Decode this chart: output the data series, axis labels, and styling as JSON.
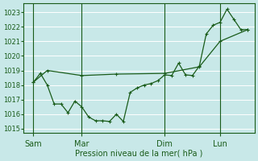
{
  "xlabel": "Pression niveau de la mer( hPa )",
  "bg_color": "#c8e8e8",
  "line_color": "#1a5c1a",
  "ylim_min": 1014.7,
  "ylim_max": 1023.6,
  "xlim_min": -0.2,
  "xlim_max": 16.5,
  "yticks": [
    1015,
    1016,
    1017,
    1018,
    1019,
    1020,
    1021,
    1022,
    1023
  ],
  "day_labels": [
    "Sam",
    "Mar",
    "Dim",
    "Lun"
  ],
  "day_positions": [
    0.5,
    4.0,
    10.0,
    14.0
  ],
  "vline_positions": [
    0.5,
    4.0,
    10.0,
    14.0
  ],
  "series1_x": [
    0.5,
    1.0,
    1.5,
    2.0,
    2.5,
    3.0,
    3.5,
    4.0,
    4.5,
    5.0,
    5.5,
    6.0,
    6.5,
    7.0,
    7.5,
    8.0,
    8.5,
    9.0,
    9.5,
    10.0,
    10.5,
    11.0,
    11.5,
    12.0,
    12.5,
    13.0,
    13.5,
    14.0,
    14.5,
    15.0,
    15.5,
    16.0
  ],
  "series1_y": [
    1018.2,
    1018.8,
    1018.0,
    1016.7,
    1016.7,
    1016.1,
    1016.9,
    1016.5,
    1015.8,
    1015.55,
    1015.55,
    1015.5,
    1016.0,
    1015.5,
    1017.5,
    1017.8,
    1018.0,
    1018.1,
    1018.3,
    1018.7,
    1018.65,
    1019.5,
    1018.7,
    1018.65,
    1019.3,
    1021.5,
    1022.1,
    1022.3,
    1023.2,
    1022.5,
    1021.8,
    1021.8
  ],
  "series2_x": [
    0.5,
    1.5,
    4.0,
    6.5,
    10.0,
    12.5,
    14.0,
    16.0
  ],
  "series2_y": [
    1018.2,
    1019.0,
    1018.65,
    1018.75,
    1018.8,
    1019.25,
    1021.0,
    1021.8
  ]
}
